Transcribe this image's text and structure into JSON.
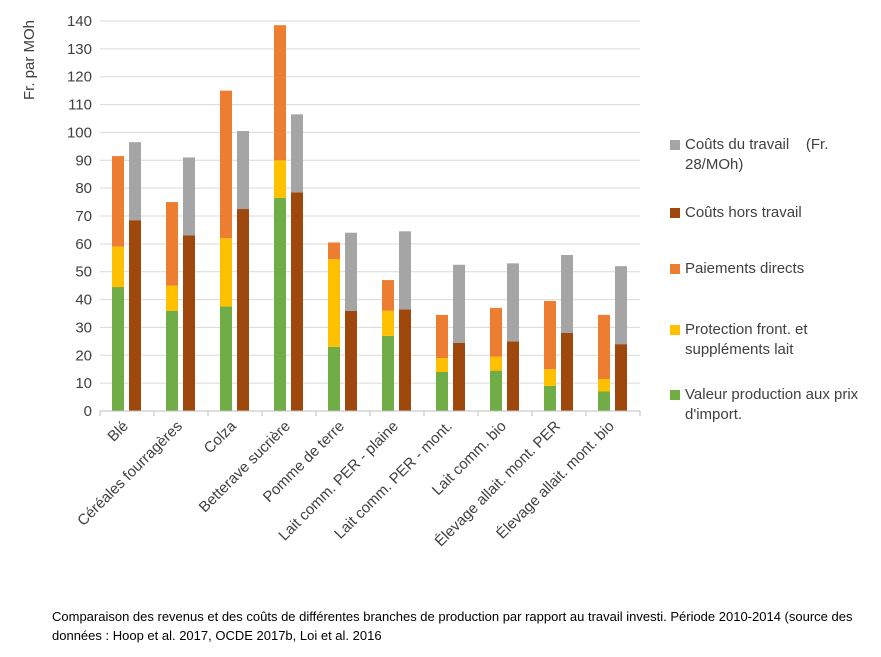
{
  "chart_data": {
    "type": "bar",
    "ylabel": "Fr. par MOh",
    "ylim": [
      0,
      140
    ],
    "yticks": [
      0,
      10,
      20,
      30,
      40,
      50,
      60,
      70,
      80,
      90,
      100,
      110,
      120,
      130,
      140
    ],
    "grid": true,
    "legend_position": "right",
    "categories": [
      "Blé",
      "Céréales fourragères",
      "Colza",
      "Betterave sucrière",
      "Pomme de terre",
      "Lait comm. PER - plaine",
      "Lait comm. PER - mont.",
      "Lait comm. bio",
      "Élevage allait. mont. PER",
      "Élevage allait. mont. bio"
    ],
    "stacks": [
      {
        "stack": "revenus",
        "series": [
          {
            "name": "Valeur production aux prix d'import.",
            "color": "#70ad47",
            "values": [
              44.5,
              36,
              37.5,
              76.5,
              23,
              27,
              14,
              14.5,
              9,
              7
            ]
          },
          {
            "name": "Protection front. et suppléments lait",
            "color": "#ffc000",
            "values": [
              14.5,
              9,
              24.5,
              13.5,
              31.5,
              9,
              5,
              5,
              6,
              4.5
            ]
          },
          {
            "name": "Paiements directs",
            "color": "#ed7d31",
            "values": [
              32.5,
              30,
              53,
              48.5,
              6,
              11,
              15.5,
              17.5,
              24.5,
              23
            ]
          }
        ]
      },
      {
        "stack": "couts",
        "series": [
          {
            "name": "Coûts hors travail",
            "color": "#9e480e",
            "values": [
              68.5,
              63,
              72.5,
              78.5,
              36,
              36.5,
              24.5,
              25,
              28,
              24
            ]
          },
          {
            "name": "Coûts du travail    (Fr. 28/MOh)",
            "color": "#a5a5a5",
            "values": [
              28,
              28,
              28,
              28,
              28,
              28,
              28,
              28,
              28,
              28
            ]
          }
        ]
      }
    ],
    "legend": [
      {
        "label": "Coûts du travail    (Fr. 28/MOh)",
        "color": "#a5a5a5"
      },
      {
        "label": "Coûts hors travail",
        "color": "#9e480e"
      },
      {
        "label": "Paiements directs",
        "color": "#ed7d31"
      },
      {
        "label": "Protection front. et suppléments lait",
        "color": "#ffc000"
      },
      {
        "label": "Valeur production aux prix d'import.",
        "color": "#70ad47"
      }
    ]
  },
  "caption": "Comparaison des revenus et des coûts de différentes branches de production  par rapport au travail investi. Période 2010-2014 (source des données : Hoop et al. 2017, OCDE 2017b, Loi et al. 2016"
}
